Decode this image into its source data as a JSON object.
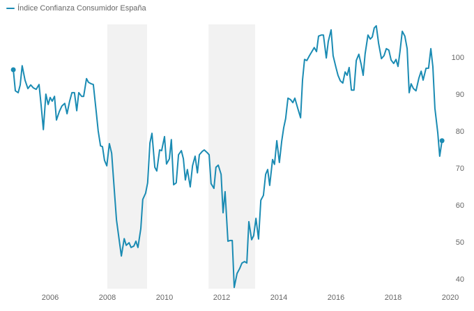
{
  "chart_data": {
    "type": "line",
    "title": "",
    "xlabel": "",
    "ylabel": "",
    "xlim": [
      2004.5,
      2020.2
    ],
    "ylim": [
      37,
      110
    ],
    "grid": false,
    "legend": {
      "position": "top-left",
      "entries": [
        "Índice Confianza Consumidor España"
      ]
    },
    "x_ticks": [
      2006,
      2008,
      2010,
      2012,
      2014,
      2016,
      2018,
      2020
    ],
    "x_tick_labels": [
      "2006",
      "2008",
      "2010",
      "2012",
      "2014",
      "2016",
      "2018",
      "2020"
    ],
    "y_ticks": [
      40,
      50,
      60,
      70,
      80,
      90,
      100
    ],
    "y_tick_labels": [
      "40",
      "50",
      "60",
      "70",
      "80",
      "90",
      "100"
    ],
    "y_axis_side": "right",
    "shaded_periods": [
      {
        "start": 2008.0,
        "end": 2009.39
      },
      {
        "start": 2011.54,
        "end": 2013.17
      }
    ],
    "colors": {
      "line": "#1a8bb3",
      "shade": "#f2f2f2",
      "tick_text": "#666666"
    },
    "series": [
      {
        "name": "Índice Confianza Consumidor España",
        "x": [
          2004.71,
          2004.78,
          2004.88,
          2004.95,
          2005.02,
          2005.12,
          2005.22,
          2005.32,
          2005.41,
          2005.51,
          2005.61,
          2005.68,
          2005.76,
          2005.85,
          2005.93,
          2006.0,
          2006.07,
          2006.15,
          2006.22,
          2006.32,
          2006.41,
          2006.51,
          2006.59,
          2006.68,
          2006.76,
          2006.85,
          2006.93,
          2007.0,
          2007.1,
          2007.17,
          2007.27,
          2007.34,
          2007.44,
          2007.51,
          2007.61,
          2007.68,
          2007.76,
          2007.83,
          2007.9,
          2007.98,
          2008.07,
          2008.15,
          2008.24,
          2008.32,
          2008.41,
          2008.49,
          2008.59,
          2008.66,
          2008.76,
          2008.83,
          2008.93,
          2009.0,
          2009.07,
          2009.17,
          2009.24,
          2009.34,
          2009.41,
          2009.49,
          2009.56,
          2009.66,
          2009.73,
          2009.83,
          2009.9,
          2010.0,
          2010.07,
          2010.17,
          2010.24,
          2010.32,
          2010.41,
          2010.49,
          2010.59,
          2010.66,
          2010.73,
          2010.8,
          2010.9,
          2010.98,
          2011.07,
          2011.15,
          2011.22,
          2011.32,
          2011.39,
          2011.49,
          2011.56,
          2011.63,
          2011.73,
          2011.8,
          2011.88,
          2011.98,
          2012.05,
          2012.12,
          2012.22,
          2012.29,
          2012.37,
          2012.44,
          2012.54,
          2012.63,
          2012.71,
          2012.8,
          2012.88,
          2012.95,
          2013.05,
          2013.12,
          2013.2,
          2013.29,
          2013.37,
          2013.46,
          2013.54,
          2013.61,
          2013.68,
          2013.78,
          2013.85,
          2013.93,
          2014.02,
          2014.1,
          2014.17,
          2014.24,
          2014.32,
          2014.41,
          2014.49,
          2014.56,
          2014.66,
          2014.76,
          2014.83,
          2014.9,
          2014.98,
          2015.07,
          2015.17,
          2015.24,
          2015.32,
          2015.39,
          2015.49,
          2015.56,
          2015.66,
          2015.73,
          2015.83,
          2015.9,
          2016.0,
          2016.07,
          2016.15,
          2016.24,
          2016.32,
          2016.39,
          2016.46,
          2016.54,
          2016.63,
          2016.71,
          2016.8,
          2016.88,
          2016.95,
          2017.02,
          2017.12,
          2017.2,
          2017.27,
          2017.34,
          2017.41,
          2017.49,
          2017.59,
          2017.68,
          2017.76,
          2017.85,
          2017.93,
          2018.02,
          2018.1,
          2018.17,
          2018.24,
          2018.32,
          2018.41,
          2018.49,
          2018.56,
          2018.63,
          2018.71,
          2018.8,
          2018.9,
          2018.98,
          2019.05,
          2019.15,
          2019.24,
          2019.32,
          2019.39,
          2019.46,
          2019.56,
          2019.63,
          2019.71
        ],
        "values": [
          96.6,
          90.9,
          90.4,
          92.5,
          97.7,
          93.8,
          91.5,
          92.5,
          91.7,
          91.3,
          92.6,
          87.2,
          80.4,
          90.0,
          87.2,
          89.1,
          88.1,
          89.4,
          83.0,
          85.3,
          86.8,
          87.5,
          84.7,
          88.1,
          90.4,
          90.4,
          85.5,
          90.4,
          89.4,
          89.4,
          94.2,
          93.2,
          92.8,
          92.6,
          85.3,
          80.0,
          76.0,
          75.8,
          72.1,
          70.6,
          76.6,
          74.0,
          64.5,
          56.0,
          50.8,
          46.2,
          50.9,
          49.1,
          49.8,
          48.5,
          48.9,
          50.2,
          48.5,
          53.6,
          61.5,
          63.2,
          66.0,
          76.8,
          79.4,
          70.2,
          69.2,
          74.9,
          74.7,
          78.5,
          71.1,
          72.5,
          77.7,
          65.5,
          66.0,
          73.6,
          74.7,
          72.5,
          66.8,
          69.6,
          64.9,
          70.6,
          73.2,
          68.7,
          73.6,
          74.5,
          74.9,
          74.2,
          73.6,
          65.8,
          64.5,
          70.2,
          70.8,
          68.3,
          57.9,
          63.6,
          50.2,
          50.4,
          50.4,
          37.7,
          41.5,
          42.8,
          44.3,
          44.7,
          44.3,
          55.5,
          50.6,
          51.7,
          56.4,
          50.8,
          61.3,
          62.6,
          68.3,
          69.6,
          65.3,
          72.3,
          71.0,
          77.4,
          71.5,
          77.2,
          80.9,
          83.4,
          88.9,
          88.5,
          87.7,
          88.9,
          86.2,
          83.6,
          93.8,
          99.4,
          99.1,
          100.4,
          101.7,
          102.6,
          101.5,
          105.7,
          106.0,
          106.0,
          99.8,
          104.2,
          107.4,
          100.4,
          97.2,
          95.1,
          93.6,
          93.0,
          96.0,
          95.1,
          97.2,
          91.1,
          91.1,
          99.1,
          100.8,
          98.1,
          95.1,
          100.9,
          106.0,
          104.9,
          105.5,
          107.9,
          108.5,
          103.8,
          99.6,
          100.4,
          102.3,
          101.9,
          99.2,
          98.3,
          99.4,
          97.5,
          101.5,
          107.0,
          105.7,
          102.3,
          90.4,
          92.8,
          91.5,
          90.9,
          94.3,
          96.2,
          93.8,
          97.0,
          97.0,
          102.3,
          97.4,
          86.2,
          79.6,
          73.2,
          77.4
        ],
        "markers": [
          "first",
          "last"
        ]
      }
    ]
  }
}
